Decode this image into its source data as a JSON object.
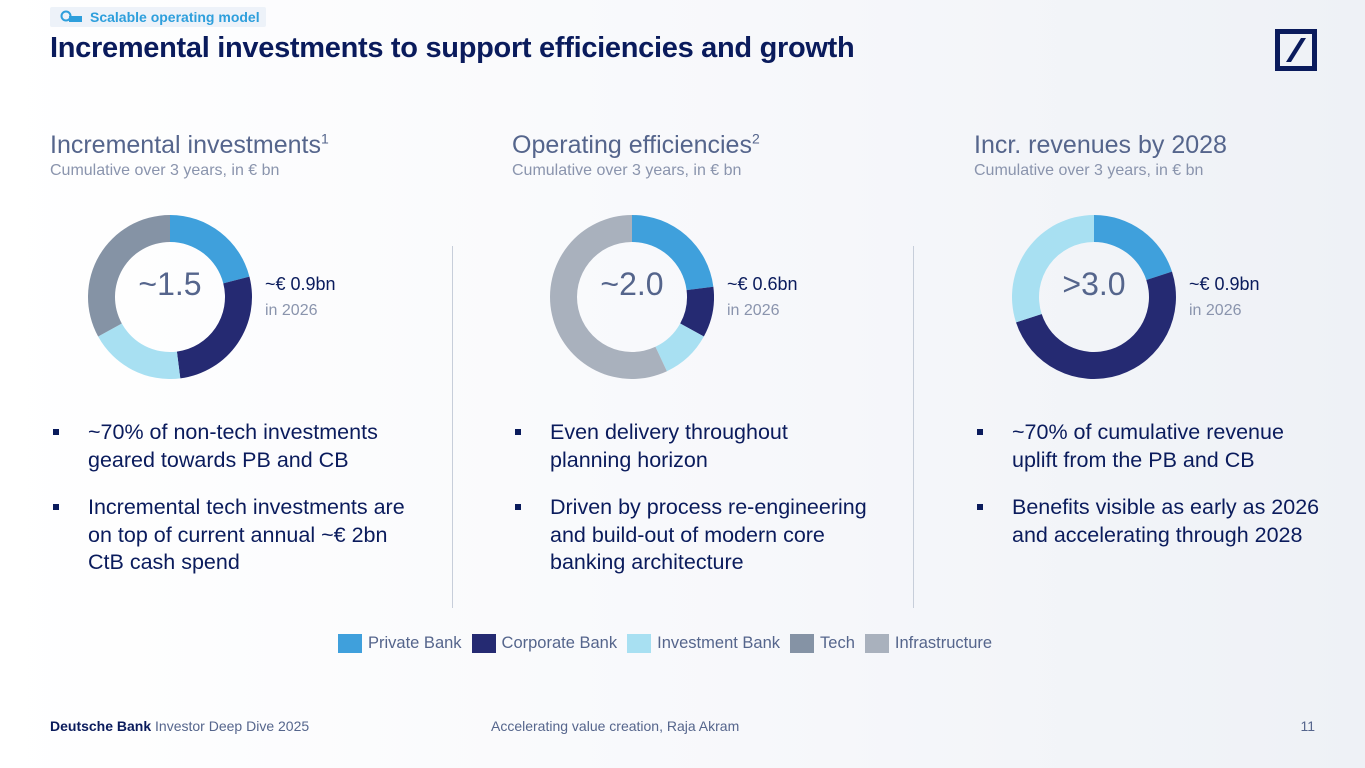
{
  "header": {
    "tag": "Scalable operating model",
    "title": "Incremental investments to support efficiencies and growth"
  },
  "colors": {
    "private_bank": "#3fa0dc",
    "corporate_bank": "#252a72",
    "investment_bank": "#a8e0f2",
    "tech": "#8593a5",
    "infrastructure": "#a9b1bd"
  },
  "chart_data": [
    {
      "type": "pie",
      "title": "Incremental investments",
      "footnote": "1",
      "subtitle": "Cumulative over 3 years, in € bn",
      "center_label": "~1.5",
      "annotation_value": "~€ 0.9bn",
      "annotation_sub": "in 2026",
      "segments": [
        {
          "name": "Private Bank",
          "value": 21,
          "color": "#3fa0dc"
        },
        {
          "name": "Corporate Bank",
          "value": 27,
          "color": "#252a72"
        },
        {
          "name": "Investment Bank",
          "value": 19,
          "color": "#a8e0f2"
        },
        {
          "name": "Tech",
          "value": 33,
          "color": "#8593a5"
        }
      ]
    },
    {
      "type": "pie",
      "title": "Operating efficiencies",
      "footnote": "2",
      "subtitle": "Cumulative over 3 years, in € bn",
      "center_label": "~2.0",
      "annotation_value": "~€ 0.6bn",
      "annotation_sub": "in 2026",
      "segments": [
        {
          "name": "Private Bank",
          "value": 23,
          "color": "#3fa0dc"
        },
        {
          "name": "Corporate Bank",
          "value": 10,
          "color": "#252a72"
        },
        {
          "name": "Investment Bank",
          "value": 10,
          "color": "#a8e0f2"
        },
        {
          "name": "Infrastructure",
          "value": 57,
          "color": "#a9b1bd"
        }
      ]
    },
    {
      "type": "pie",
      "title": "Incr. revenues by 2028",
      "footnote": "",
      "subtitle": "Cumulative over 3 years, in € bn",
      "center_label": ">3.0",
      "annotation_value": "~€ 0.9bn",
      "annotation_sub": "in 2026",
      "segments": [
        {
          "name": "Private Bank",
          "value": 20,
          "color": "#3fa0dc"
        },
        {
          "name": "Corporate Bank",
          "value": 50,
          "color": "#252a72"
        },
        {
          "name": "Investment Bank",
          "value": 30,
          "color": "#a8e0f2"
        }
      ]
    }
  ],
  "columns": [
    {
      "bullets": [
        "~70% of non-tech investments geared towards PB and CB",
        "Incremental tech investments are on top of current annual ~€ 2bn CtB cash spend"
      ]
    },
    {
      "bullets": [
        "Even delivery throughout planning horizon",
        "Driven by process re-engineering and build-out of modern core banking architecture"
      ]
    },
    {
      "bullets": [
        "~70% of cumulative revenue uplift from the PB and CB",
        "Benefits visible as early as 2026 and accelerating through 2028"
      ]
    }
  ],
  "legend": [
    {
      "label": "Private Bank",
      "color": "#3fa0dc"
    },
    {
      "label": "Corporate Bank",
      "color": "#252a72"
    },
    {
      "label": "Investment Bank",
      "color": "#a8e0f2"
    },
    {
      "label": "Tech",
      "color": "#8593a5"
    },
    {
      "label": "Infrastructure",
      "color": "#a9b1bd"
    }
  ],
  "footer": {
    "brand": "Deutsche Bank",
    "event": "Investor Deep Dive 2025",
    "center": "Accelerating value creation, Raja Akram",
    "page": "11"
  }
}
